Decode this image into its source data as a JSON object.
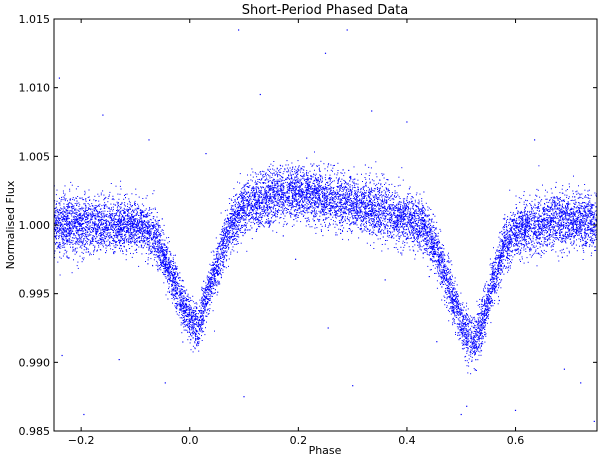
{
  "chart_data": {
    "type": "scatter",
    "title": "Short-Period Phased Data",
    "xlabel": "Phase",
    "ylabel": "Normalised Flux",
    "xlim": [
      -0.25,
      0.75
    ],
    "ylim": [
      0.985,
      1.015
    ],
    "x_ticks": [
      -0.2,
      0.0,
      0.2,
      0.4,
      0.6
    ],
    "x_tick_labels": [
      "−0.2",
      "0.0",
      "0.2",
      "0.4",
      "0.6"
    ],
    "y_ticks": [
      0.985,
      0.99,
      0.995,
      1.0,
      1.005,
      1.01,
      1.015
    ],
    "y_tick_labels": [
      "0.985",
      "0.990",
      "0.995",
      "1.000",
      "1.005",
      "1.010",
      "1.015"
    ],
    "grid": false,
    "marker_color": "#0000ff",
    "light_curve": {
      "phase": [
        -0.25,
        -0.2,
        -0.15,
        -0.1,
        -0.07,
        -0.05,
        -0.03,
        -0.01,
        0.0,
        0.015,
        0.03,
        0.05,
        0.07,
        0.1,
        0.15,
        0.2,
        0.25,
        0.3,
        0.35,
        0.4,
        0.43,
        0.45,
        0.47,
        0.49,
        0.51,
        0.525,
        0.54,
        0.56,
        0.58,
        0.6,
        0.65,
        0.7,
        0.75
      ],
      "flux": [
        1.0,
        1.0,
        1.0,
        1.0,
        0.9995,
        0.998,
        0.996,
        0.994,
        0.993,
        0.9925,
        0.9945,
        0.997,
        0.9995,
        1.0012,
        1.002,
        1.0024,
        1.002,
        1.0015,
        1.001,
        1.0005,
        1.0,
        0.9985,
        0.9965,
        0.994,
        0.992,
        0.9915,
        0.993,
        0.996,
        0.9985,
        0.9995,
        1.0002,
        1.0003,
        1.0002
      ],
      "scatter": [
        0.0019,
        0.0019,
        0.0018,
        0.0017,
        0.0017,
        0.0016,
        0.0015,
        0.0015,
        0.0015,
        0.0015,
        0.0015,
        0.0016,
        0.0016,
        0.0017,
        0.0018,
        0.0018,
        0.0018,
        0.0018,
        0.0018,
        0.0017,
        0.0016,
        0.0016,
        0.0016,
        0.0016,
        0.0016,
        0.0016,
        0.0016,
        0.0016,
        0.0017,
        0.0017,
        0.0018,
        0.0018,
        0.0018
      ],
      "n_points": 13000
    },
    "outliers": [
      {
        "x": -0.24,
        "y": 1.0107
      },
      {
        "x": -0.195,
        "y": 0.9862
      },
      {
        "x": -0.16,
        "y": 1.008
      },
      {
        "x": -0.13,
        "y": 0.9902
      },
      {
        "x": -0.075,
        "y": 1.0062
      },
      {
        "x": -0.045,
        "y": 0.9885
      },
      {
        "x": 0.09,
        "y": 1.0142
      },
      {
        "x": 0.1,
        "y": 0.9875
      },
      {
        "x": 0.13,
        "y": 1.0095
      },
      {
        "x": 0.195,
        "y": 0.9975
      },
      {
        "x": 0.25,
        "y": 1.0125
      },
      {
        "x": 0.255,
        "y": 0.9925
      },
      {
        "x": 0.29,
        "y": 1.0142
      },
      {
        "x": 0.3,
        "y": 0.9883
      },
      {
        "x": 0.335,
        "y": 1.0083
      },
      {
        "x": 0.36,
        "y": 0.996
      },
      {
        "x": 0.455,
        "y": 0.9915
      },
      {
        "x": 0.5,
        "y": 0.9862
      },
      {
        "x": 0.51,
        "y": 0.9868
      },
      {
        "x": 0.6,
        "y": 0.9865
      },
      {
        "x": 0.635,
        "y": 1.0062
      },
      {
        "x": 0.69,
        "y": 0.9895
      },
      {
        "x": 0.72,
        "y": 0.9885
      },
      {
        "x": 0.745,
        "y": 0.9857
      },
      {
        "x": -0.235,
        "y": 0.9905
      },
      {
        "x": 0.03,
        "y": 1.0052
      },
      {
        "x": 0.4,
        "y": 1.0075
      },
      {
        "x": 0.57,
        "y": 0.9945
      }
    ]
  }
}
